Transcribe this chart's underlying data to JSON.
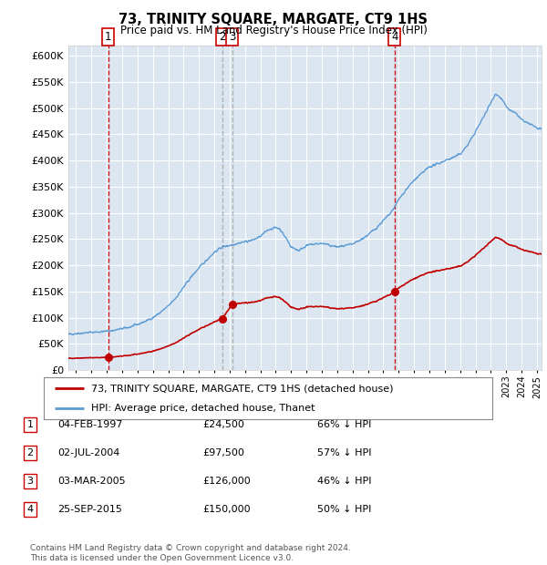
{
  "title": "73, TRINITY SQUARE, MARGATE, CT9 1HS",
  "subtitle": "Price paid vs. HM Land Registry's House Price Index (HPI)",
  "sales": [
    {
      "num": 1,
      "date_str": "04-FEB-1997",
      "date_x": 1997.09,
      "price": 24500,
      "pct": "66%",
      "vline_style": "red-dash"
    },
    {
      "num": 2,
      "date_str": "02-JUL-2004",
      "date_x": 2004.5,
      "price": 97500,
      "pct": "57%",
      "vline_style": "gray-dash"
    },
    {
      "num": 3,
      "date_str": "03-MAR-2005",
      "date_x": 2005.17,
      "price": 126000,
      "pct": "46%",
      "vline_style": "gray-dash"
    },
    {
      "num": 4,
      "date_str": "25-SEP-2015",
      "date_x": 2015.73,
      "price": 150000,
      "pct": "50%",
      "vline_style": "red-dash"
    }
  ],
  "hpi_line_color": "#5b9bd5",
  "sale_line_color": "#c00000",
  "sale_dot_color": "#c00000",
  "vline_red_color": "#cc0000",
  "vline_gray_color": "#aaaaaa",
  "plot_bg_color": "#dce6f1",
  "grid_color": "#ffffff",
  "ylim": [
    0,
    620000
  ],
  "xlim": [
    1994.5,
    2025.3
  ],
  "yticks": [
    0,
    50000,
    100000,
    150000,
    200000,
    250000,
    300000,
    350000,
    400000,
    450000,
    500000,
    550000,
    600000
  ],
  "ytick_labels": [
    "£0",
    "£50K",
    "£100K",
    "£150K",
    "£200K",
    "£250K",
    "£300K",
    "£350K",
    "£400K",
    "£450K",
    "£500K",
    "£550K",
    "£600K"
  ],
  "legend_line1": "73, TRINITY SQUARE, MARGATE, CT9 1HS (detached house)",
  "legend_line2": "HPI: Average price, detached house, Thanet",
  "footer": "Contains HM Land Registry data © Crown copyright and database right 2024.\nThis data is licensed under the Open Government Licence v3.0.",
  "table_rows": [
    {
      "num": 1,
      "date": "04-FEB-1997",
      "price": "£24,500",
      "pct": "66% ↓ HPI"
    },
    {
      "num": 2,
      "date": "02-JUL-2004",
      "price": "£97,500",
      "pct": "57% ↓ HPI"
    },
    {
      "num": 3,
      "date": "03-MAR-2005",
      "price": "£126,000",
      "pct": "46% ↓ HPI"
    },
    {
      "num": 4,
      "date": "25-SEP-2015",
      "price": "£150,000",
      "pct": "50% ↓ HPI"
    }
  ]
}
